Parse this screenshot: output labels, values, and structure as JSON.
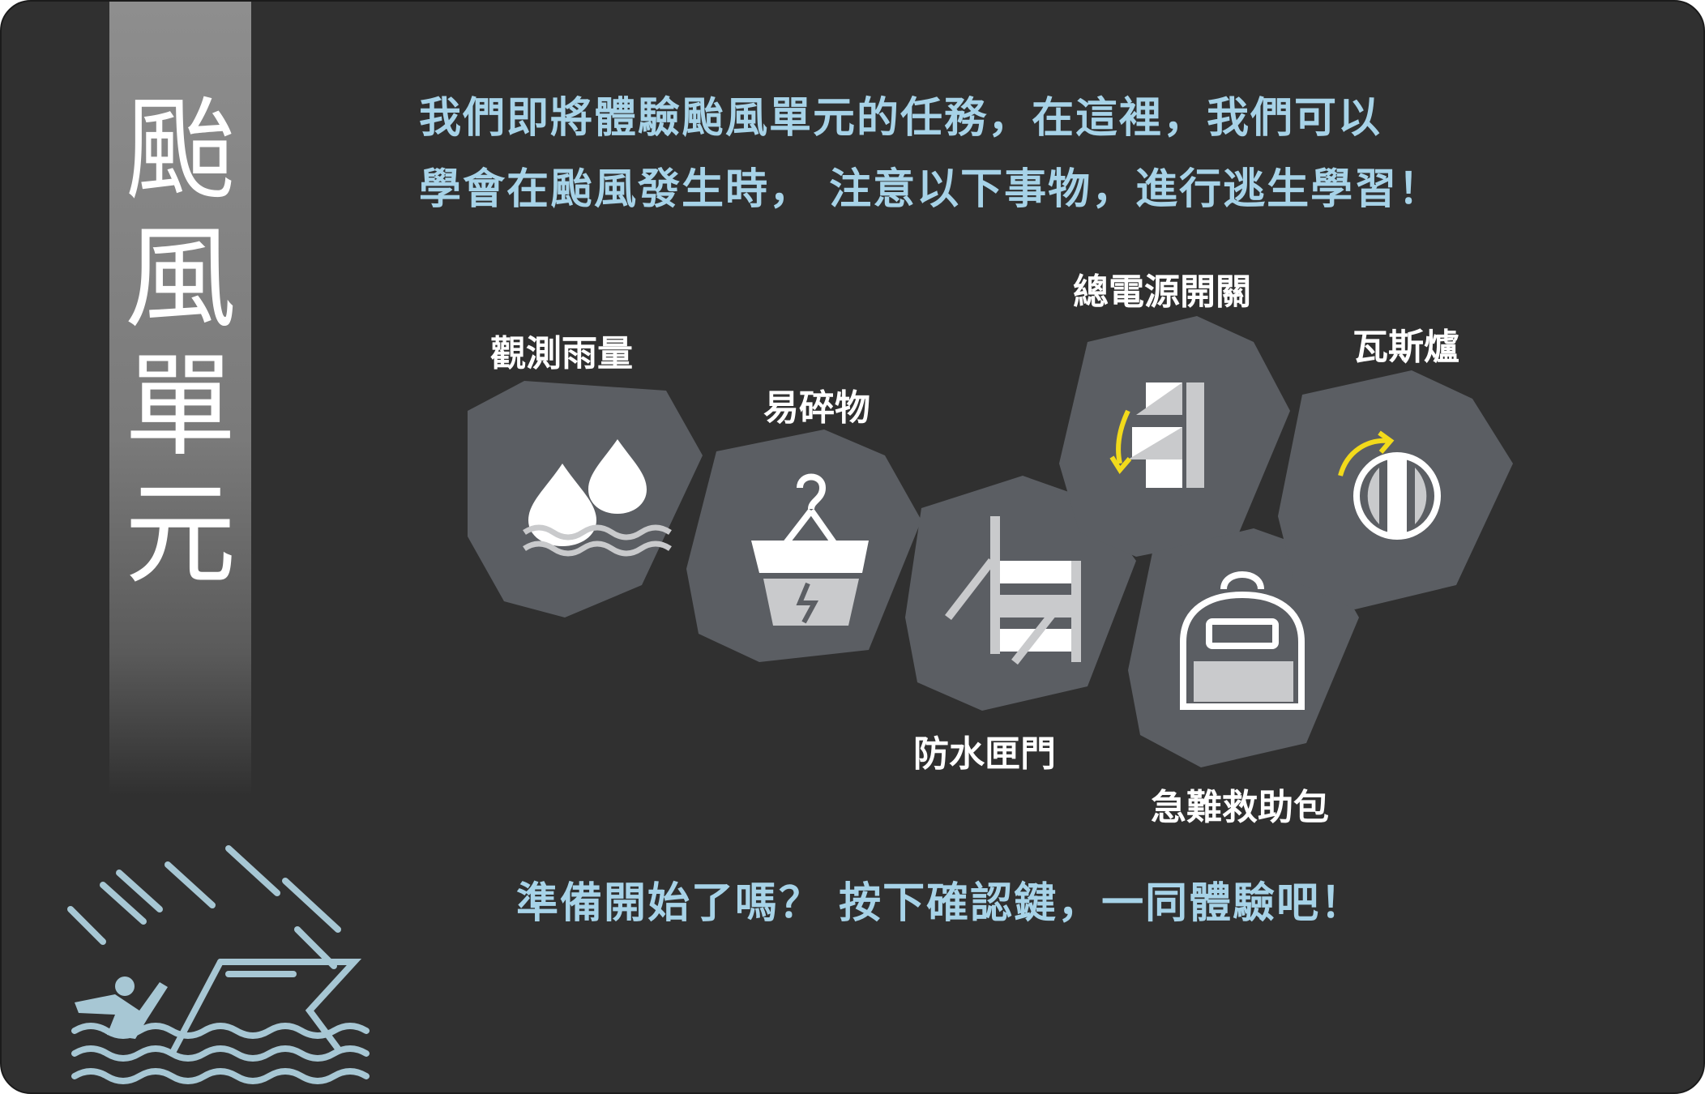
{
  "sidebar": {
    "title": "颱\n風\n單\n元"
  },
  "intro": {
    "line1": "我們即將體驗颱風單元的任務，在這裡，我們可以",
    "line2": "學會在颱風發生時， 注意以下事物，進行逃生學習！"
  },
  "items": [
    {
      "label": "觀測雨量",
      "icon": "raindrops-water-icon"
    },
    {
      "label": "易碎物",
      "icon": "fragile-flowerpot-icon"
    },
    {
      "label": "防水匣門",
      "icon": "flood-gate-icon"
    },
    {
      "label": "總電源開關",
      "icon": "power-switch-icon"
    },
    {
      "label": "急難救助包",
      "icon": "emergency-backpack-icon"
    },
    {
      "label": "瓦斯爐",
      "icon": "gas-knob-icon"
    }
  ],
  "cta": {
    "text": "準備開始了嗎？ 按下確認鍵，一同體驗吧！"
  },
  "colors": {
    "background": "#303030",
    "hexagon": "#5b5e63",
    "accent_text": "#a7d3e8",
    "arrow": "#f2da1b",
    "icon_light": "#c9cacc"
  }
}
